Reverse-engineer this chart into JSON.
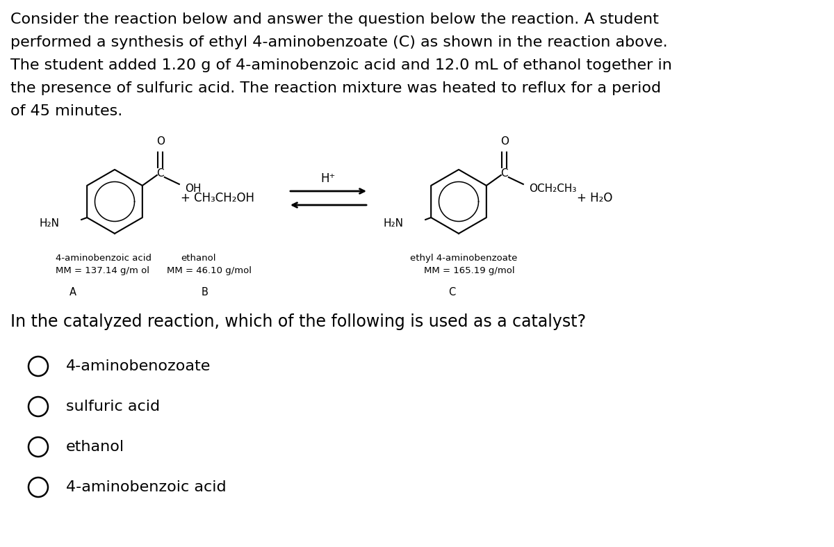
{
  "background_color": "#ffffff",
  "text_color": "#000000",
  "title_lines": [
    "Consider the reaction below and answer the question below the reaction. A student",
    "performed a synthesis of ethyl 4-aminobenzoate (C) as shown in the reaction above.",
    "The student added 1.20 g of 4-aminobenzoic acid and 12.0 mL of ethanol together in",
    "the presence of sulfuric acid. The reaction mixture was heated to reflux for a period",
    "of 45 minutes."
  ],
  "question": "In the catalyzed reaction, which of the following is used as a catalyst?",
  "choices": [
    "4-aminobenozoate",
    "sulfuric acid",
    "ethanol",
    "4-aminobenzoic acid"
  ],
  "label_a_text1": "4-aminobenzoic acid",
  "label_a_text2": "MM = 137.14 g/m ol",
  "label_b_text1": "ethanol",
  "label_b_text2": "MM = 46.10 g/mol",
  "label_c_text1": "ethyl 4-aminobenzoate",
  "label_c_text2": "MM = 165.19 g/mol"
}
